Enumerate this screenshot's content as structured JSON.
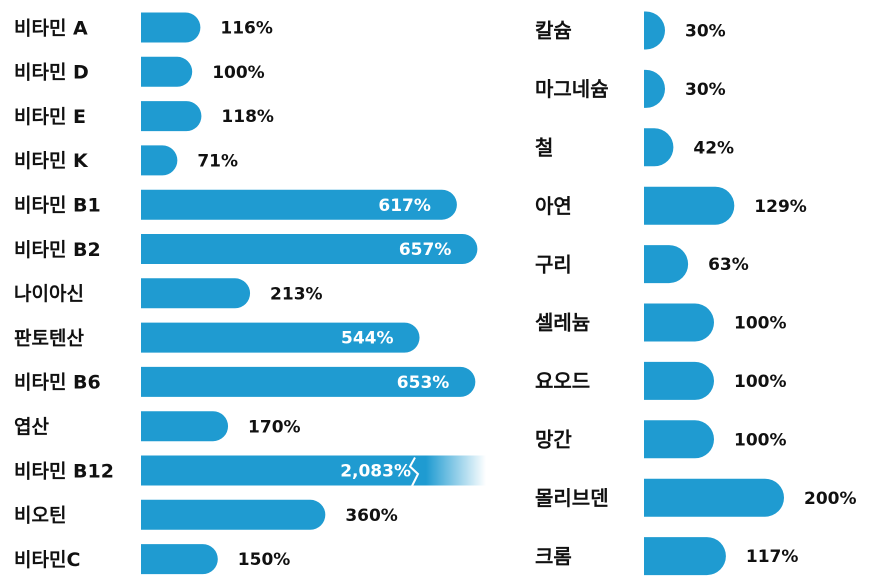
{
  "chart_data": [
    {
      "type": "bar",
      "orientation": "horizontal",
      "color": "#1f9bd1",
      "categories": [
        "비타민 A",
        "비타민 D",
        "비타민 E",
        "비타민 K",
        "비타민 B1",
        "비타민 B2",
        "나이아신",
        "판토텐산",
        "비타민 B6",
        "엽산",
        "비타민 B12",
        "비오틴",
        "비타민C"
      ],
      "values": [
        116,
        100,
        118,
        71,
        617,
        657,
        213,
        544,
        653,
        170,
        2083,
        360,
        150
      ],
      "labels": [
        "116%",
        "100%",
        "118%",
        "71%",
        "617%",
        "657%",
        "213%",
        "544%",
        "653%",
        "170%",
        "2,083%",
        "360%",
        "150%"
      ],
      "axis_break": "비타민 B12"
    },
    {
      "type": "bar",
      "orientation": "horizontal",
      "color": "#1f9bd1",
      "categories": [
        "칼슘",
        "마그네슘",
        "철",
        "아연",
        "구리",
        "셀레늄",
        "요오드",
        "망간",
        "몰리브덴",
        "크롬"
      ],
      "values": [
        30,
        30,
        42,
        129,
        63,
        100,
        100,
        100,
        200,
        117
      ],
      "labels": [
        "30%",
        "30%",
        "42%",
        "129%",
        "63%",
        "100%",
        "100%",
        "100%",
        "200%",
        "117%"
      ]
    }
  ]
}
